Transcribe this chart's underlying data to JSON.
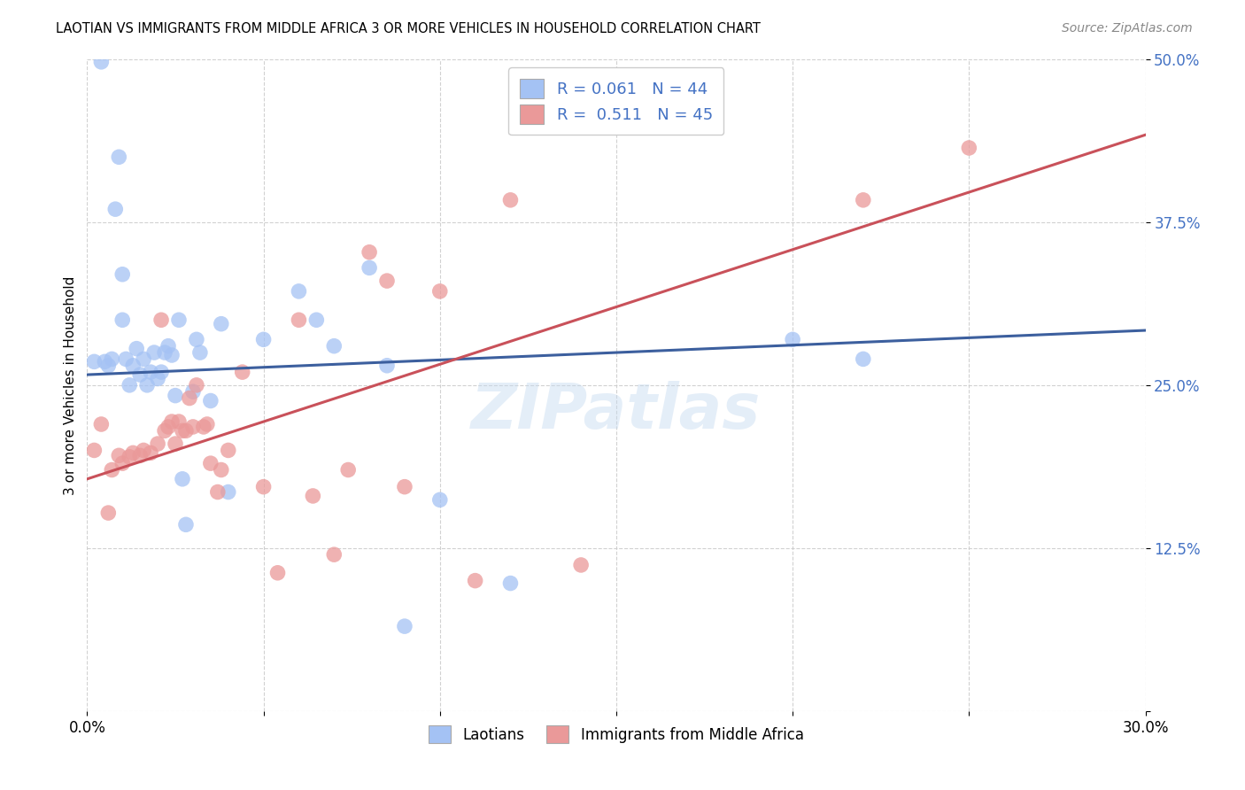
{
  "title": "LAOTIAN VS IMMIGRANTS FROM MIDDLE AFRICA 3 OR MORE VEHICLES IN HOUSEHOLD CORRELATION CHART",
  "source": "Source: ZipAtlas.com",
  "ylabel": "3 or more Vehicles in Household",
  "xlim": [
    0.0,
    0.3
  ],
  "ylim": [
    0.0,
    0.5
  ],
  "xtick_positions": [
    0.0,
    0.05,
    0.1,
    0.15,
    0.2,
    0.25,
    0.3
  ],
  "xtick_labels": [
    "0.0%",
    "",
    "",
    "",
    "",
    "",
    "30.0%"
  ],
  "ytick_positions": [
    0.0,
    0.125,
    0.25,
    0.375,
    0.5
  ],
  "ytick_labels": [
    "",
    "12.5%",
    "25.0%",
    "37.5%",
    "50.0%"
  ],
  "legend_top_1": "R = 0.061   N = 44",
  "legend_top_2": "R =  0.511   N = 45",
  "legend_bottom_1": "Laotians",
  "legend_bottom_2": "Immigrants from Middle Africa",
  "blue_fill": "#a4c2f4",
  "pink_fill": "#ea9999",
  "blue_line": "#3c5f9e",
  "pink_line": "#c9515a",
  "watermark": "ZIPatlas",
  "blue_line_y0": 0.258,
  "blue_line_y1": 0.292,
  "pink_line_y0": 0.178,
  "pink_line_y1": 0.442,
  "blue_points_x": [
    0.002,
    0.004,
    0.005,
    0.006,
    0.007,
    0.008,
    0.009,
    0.01,
    0.01,
    0.011,
    0.012,
    0.013,
    0.014,
    0.015,
    0.016,
    0.017,
    0.018,
    0.019,
    0.02,
    0.021,
    0.022,
    0.023,
    0.024,
    0.025,
    0.026,
    0.027,
    0.028,
    0.03,
    0.031,
    0.032,
    0.035,
    0.038,
    0.04,
    0.05,
    0.06,
    0.065,
    0.07,
    0.08,
    0.085,
    0.09,
    0.1,
    0.12,
    0.2,
    0.22
  ],
  "blue_points_y": [
    0.268,
    0.498,
    0.268,
    0.265,
    0.27,
    0.385,
    0.425,
    0.335,
    0.3,
    0.27,
    0.25,
    0.265,
    0.278,
    0.258,
    0.27,
    0.25,
    0.26,
    0.275,
    0.255,
    0.26,
    0.275,
    0.28,
    0.273,
    0.242,
    0.3,
    0.178,
    0.143,
    0.245,
    0.285,
    0.275,
    0.238,
    0.297,
    0.168,
    0.285,
    0.322,
    0.3,
    0.28,
    0.34,
    0.265,
    0.065,
    0.162,
    0.098,
    0.285,
    0.27
  ],
  "pink_points_x": [
    0.002,
    0.004,
    0.006,
    0.007,
    0.009,
    0.01,
    0.012,
    0.013,
    0.015,
    0.016,
    0.018,
    0.02,
    0.021,
    0.022,
    0.023,
    0.024,
    0.025,
    0.026,
    0.027,
    0.028,
    0.029,
    0.03,
    0.031,
    0.033,
    0.034,
    0.035,
    0.037,
    0.038,
    0.04,
    0.044,
    0.05,
    0.054,
    0.06,
    0.064,
    0.07,
    0.074,
    0.08,
    0.085,
    0.09,
    0.1,
    0.11,
    0.12,
    0.14,
    0.22,
    0.25
  ],
  "pink_points_y": [
    0.2,
    0.22,
    0.152,
    0.185,
    0.196,
    0.19,
    0.195,
    0.198,
    0.196,
    0.2,
    0.198,
    0.205,
    0.3,
    0.215,
    0.218,
    0.222,
    0.205,
    0.222,
    0.215,
    0.215,
    0.24,
    0.218,
    0.25,
    0.218,
    0.22,
    0.19,
    0.168,
    0.185,
    0.2,
    0.26,
    0.172,
    0.106,
    0.3,
    0.165,
    0.12,
    0.185,
    0.352,
    0.33,
    0.172,
    0.322,
    0.1,
    0.392,
    0.112,
    0.392,
    0.432
  ]
}
